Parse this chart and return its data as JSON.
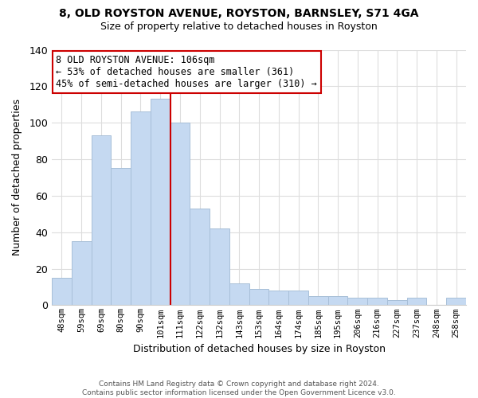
{
  "title_line1": "8, OLD ROYSTON AVENUE, ROYSTON, BARNSLEY, S71 4GA",
  "title_line2": "Size of property relative to detached houses in Royston",
  "xlabel": "Distribution of detached houses by size in Royston",
  "ylabel": "Number of detached properties",
  "bar_labels": [
    "48sqm",
    "59sqm",
    "69sqm",
    "80sqm",
    "90sqm",
    "101sqm",
    "111sqm",
    "122sqm",
    "132sqm",
    "143sqm",
    "153sqm",
    "164sqm",
    "174sqm",
    "185sqm",
    "195sqm",
    "206sqm",
    "216sqm",
    "227sqm",
    "237sqm",
    "248sqm",
    "258sqm"
  ],
  "bar_values": [
    15,
    35,
    93,
    75,
    106,
    113,
    100,
    53,
    42,
    12,
    9,
    8,
    8,
    5,
    5,
    4,
    4,
    3,
    4,
    0,
    4
  ],
  "bar_color": "#c5d9f1",
  "bar_edge_color": "#a8bfd8",
  "vline_color": "#cc0000",
  "vline_index": 5.5,
  "annotation_title": "8 OLD ROYSTON AVENUE: 106sqm",
  "annotation_line1": "← 53% of detached houses are smaller (361)",
  "annotation_line2": "45% of semi-detached houses are larger (310) →",
  "annotation_box_color": "#ffffff",
  "annotation_box_edge": "#cc0000",
  "ylim": [
    0,
    140
  ],
  "yticks": [
    0,
    20,
    40,
    60,
    80,
    100,
    120,
    140
  ],
  "footer_line1": "Contains HM Land Registry data © Crown copyright and database right 2024.",
  "footer_line2": "Contains public sector information licensed under the Open Government Licence v3.0.",
  "bg_color": "#ffffff",
  "grid_color": "#dddddd"
}
